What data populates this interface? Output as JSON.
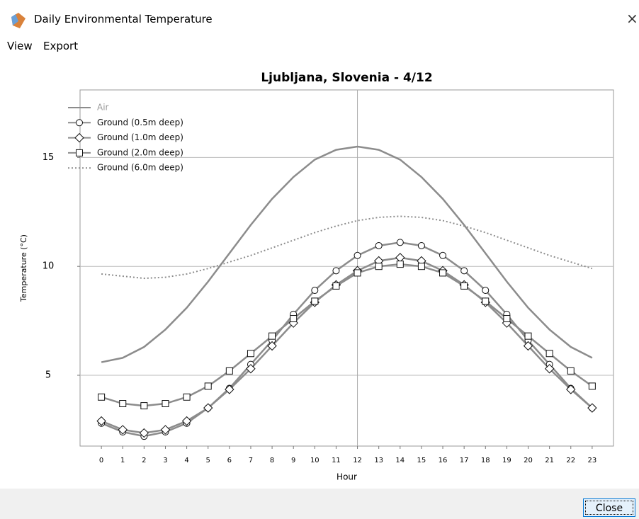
{
  "window": {
    "title": "Daily Environmental Temperature",
    "close_icon": "×"
  },
  "menu": [
    "View",
    "Export"
  ],
  "chart_data": {
    "type": "line",
    "title": "Ljubljana, Slovenia - 4/12",
    "x_label": "Hour",
    "y_label": "Temperature (°C)",
    "x": [
      0,
      1,
      2,
      3,
      4,
      5,
      6,
      7,
      8,
      9,
      10,
      11,
      12,
      13,
      14,
      15,
      16,
      17,
      18,
      19,
      20,
      21,
      22,
      23
    ],
    "xlim": [
      -1,
      24
    ],
    "xticks": [
      0,
      1,
      2,
      3,
      4,
      5,
      6,
      7,
      8,
      9,
      10,
      11,
      12,
      13,
      14,
      15,
      16,
      17,
      18,
      19,
      20,
      21,
      22,
      23
    ],
    "ylim": [
      1.75,
      18.1
    ],
    "yticks": [
      5,
      10,
      15
    ],
    "grid": true,
    "marker_x": 12,
    "legend": "upper left",
    "series": [
      {
        "name": "Air",
        "color": "#8c8c8c",
        "marker": "none",
        "dash": "solid",
        "values": [
          5.6,
          5.8,
          6.3,
          7.1,
          8.1,
          9.3,
          10.6,
          11.9,
          13.1,
          14.1,
          14.9,
          15.35,
          15.5,
          15.35,
          14.9,
          14.1,
          13.1,
          11.9,
          10.6,
          9.3,
          8.1,
          7.1,
          6.3,
          5.8
        ]
      },
      {
        "name": "Ground (0.5m deep)",
        "color": "#8c8c8c",
        "marker": "circle",
        "dash": "solid",
        "values": [
          2.8,
          2.4,
          2.2,
          2.4,
          2.8,
          3.5,
          4.4,
          5.5,
          6.6,
          7.8,
          8.9,
          9.8,
          10.5,
          10.95,
          11.1,
          10.95,
          10.5,
          9.8,
          8.9,
          7.8,
          6.6,
          5.5,
          4.4,
          3.5
        ]
      },
      {
        "name": "Ground (1.0m deep)",
        "color": "#8c8c8c",
        "marker": "diamond",
        "dash": "solid",
        "values": [
          2.9,
          2.5,
          2.35,
          2.5,
          2.9,
          3.5,
          4.35,
          5.3,
          6.35,
          7.4,
          8.35,
          9.15,
          9.8,
          10.25,
          10.4,
          10.25,
          9.8,
          9.15,
          8.35,
          7.4,
          6.35,
          5.3,
          4.35,
          3.5
        ]
      },
      {
        "name": "Ground (2.0m deep)",
        "color": "#8c8c8c",
        "marker": "square",
        "dash": "solid",
        "values": [
          4.0,
          3.7,
          3.6,
          3.7,
          4.0,
          4.5,
          5.2,
          6.0,
          6.8,
          7.6,
          8.4,
          9.1,
          9.7,
          10.0,
          10.1,
          10.0,
          9.7,
          9.1,
          8.4,
          7.6,
          6.8,
          6.0,
          5.2,
          4.5
        ]
      },
      {
        "name": "Ground (6.0m deep)",
        "color": "#8c8c8c",
        "marker": "none",
        "dash": "dotted",
        "values": [
          9.65,
          9.55,
          9.45,
          9.5,
          9.65,
          9.9,
          10.2,
          10.5,
          10.85,
          11.2,
          11.55,
          11.85,
          12.1,
          12.25,
          12.3,
          12.25,
          12.1,
          11.85,
          11.55,
          11.2,
          10.85,
          10.5,
          10.2,
          9.9
        ]
      }
    ]
  },
  "footer": {
    "button": "Close"
  }
}
